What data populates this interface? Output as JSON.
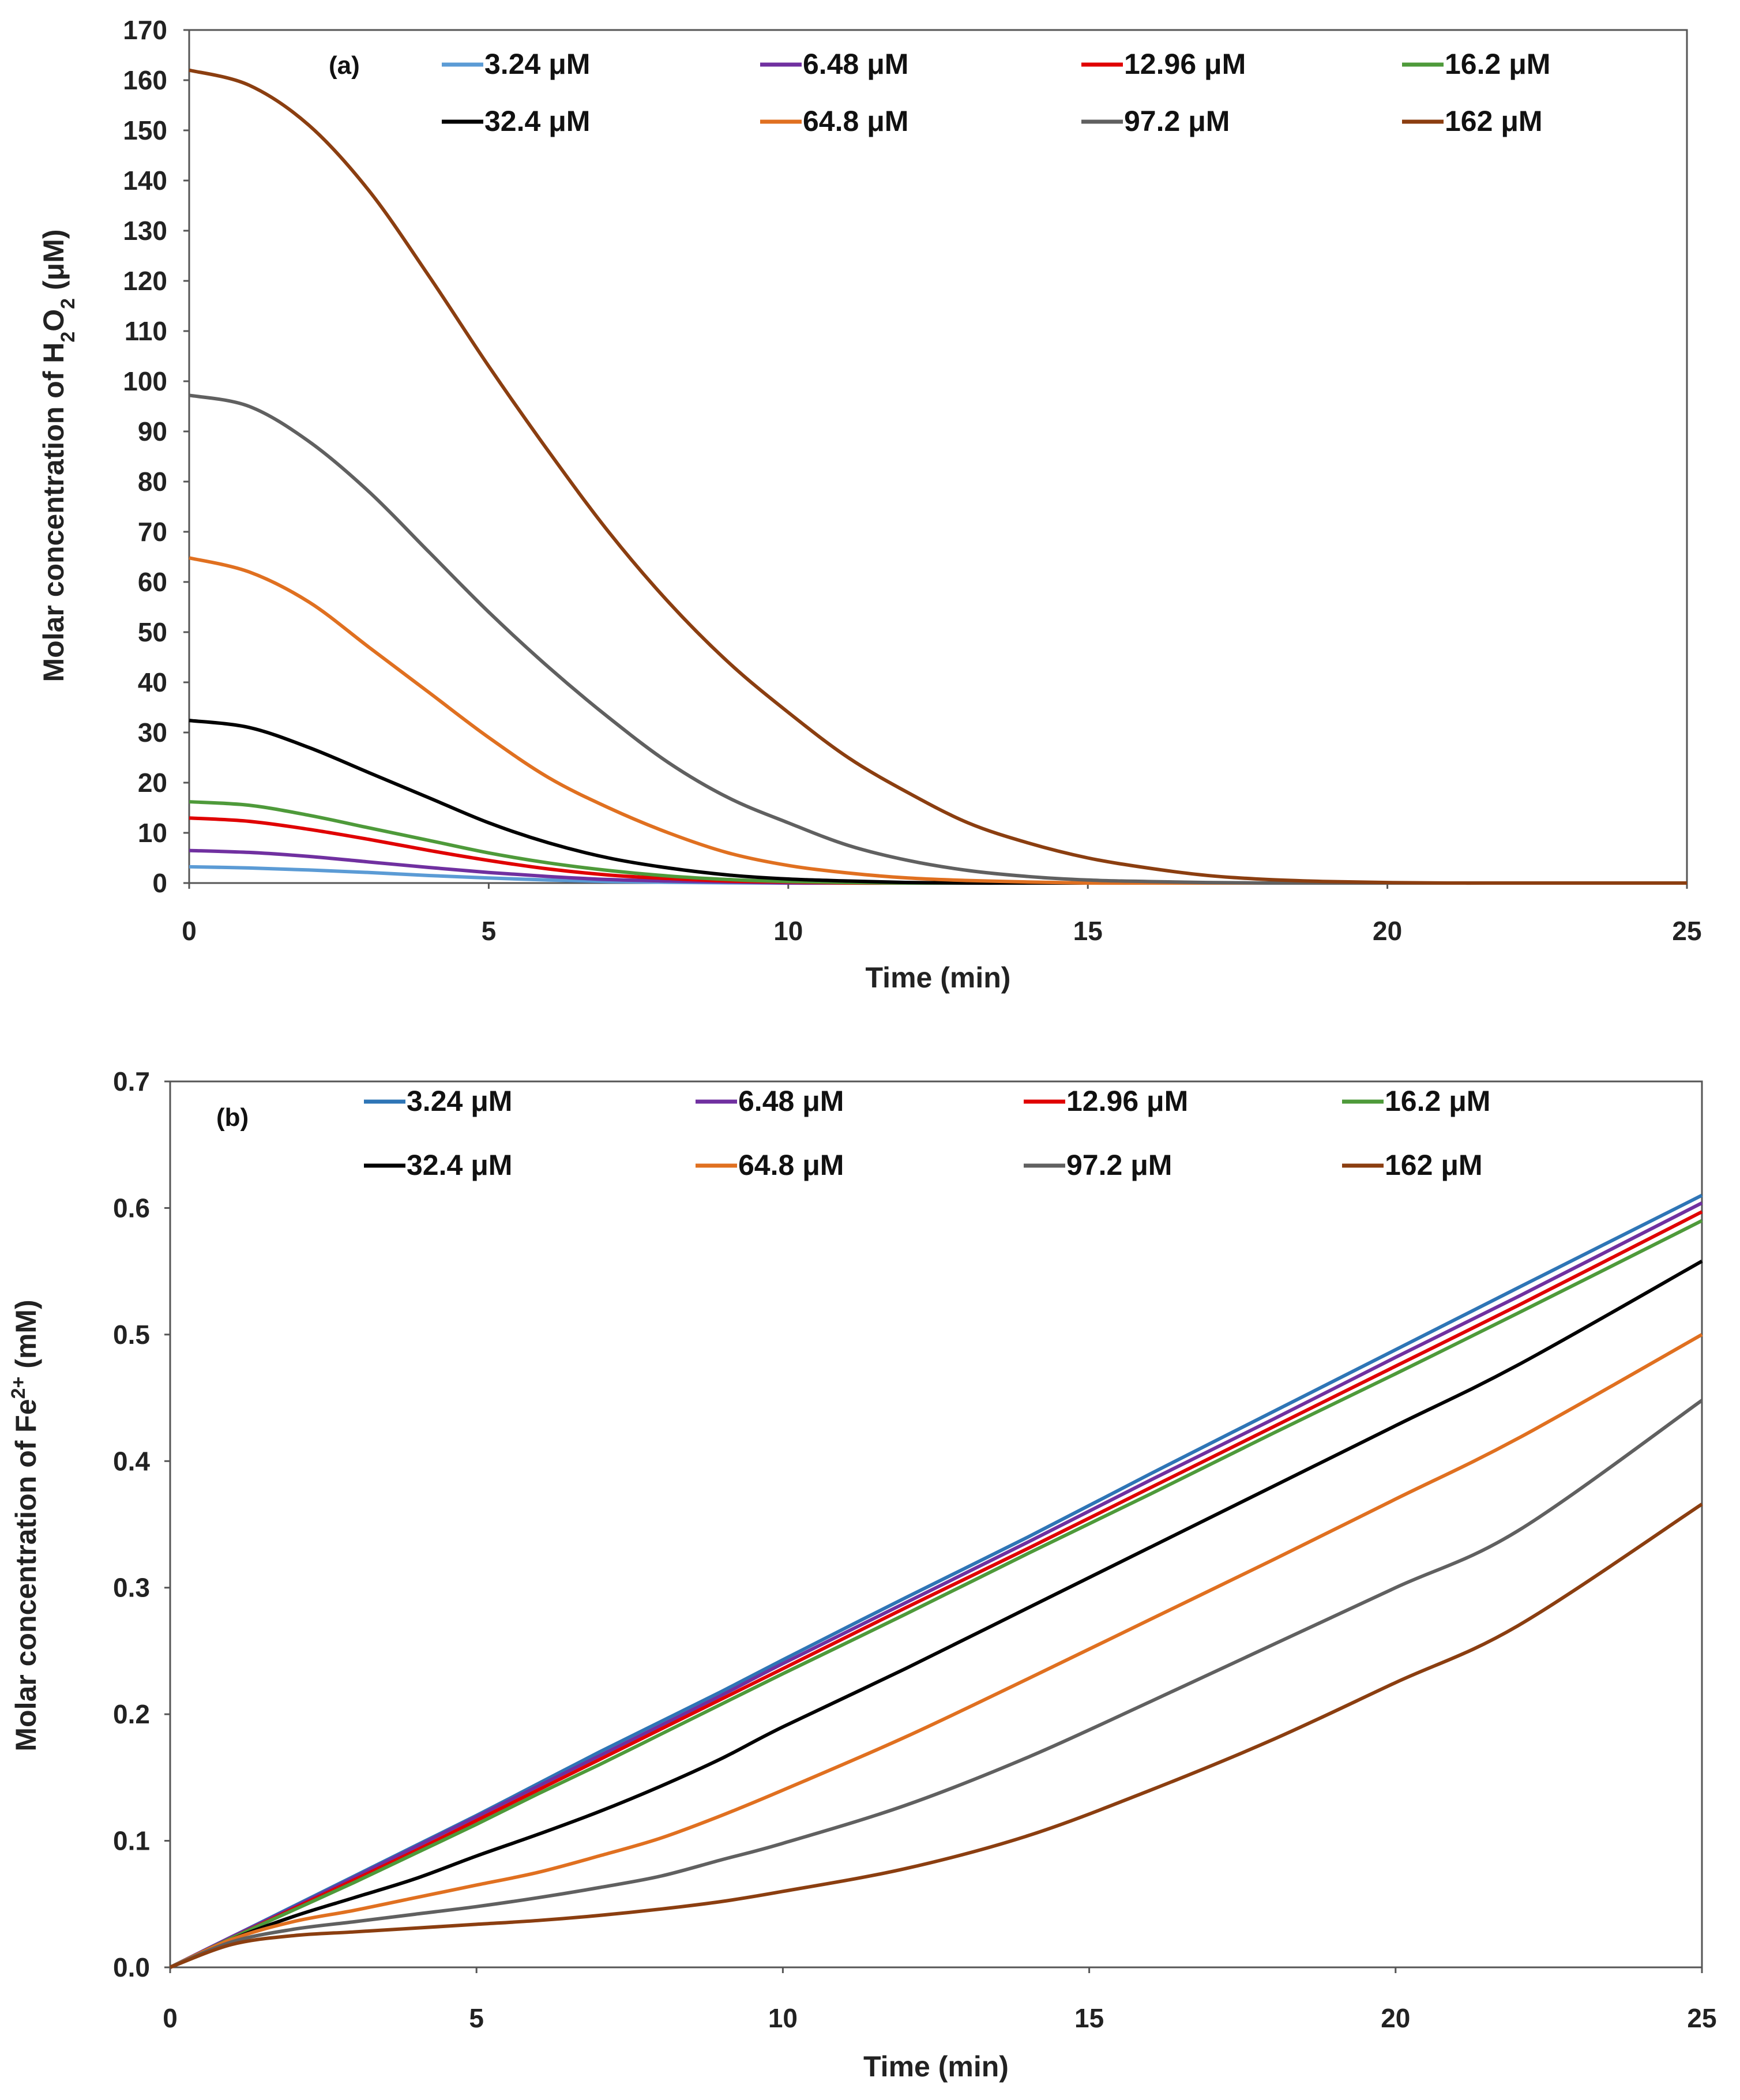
{
  "chart_data": [
    {
      "type": "line",
      "panel_label": "(a)",
      "xlabel": "Time (min)",
      "ylabel": {
        "pre": "Molar concentration of H",
        "sub1": "2",
        "mid": "O",
        "sub2": "2",
        "post": " (μM)"
      },
      "xlim": [
        0,
        25
      ],
      "ylim": [
        0,
        170
      ],
      "xticks": [
        0,
        5,
        10,
        15,
        20,
        25
      ],
      "yticks": [
        0,
        10,
        20,
        30,
        40,
        50,
        60,
        70,
        80,
        90,
        100,
        110,
        120,
        130,
        140,
        150,
        160,
        170
      ],
      "ytick_format": 0,
      "grid": false,
      "legend": "top (2 rows x 4)",
      "x": [
        0,
        1,
        2,
        3,
        4,
        5,
        6,
        7,
        8,
        9,
        10,
        11,
        12,
        13,
        14,
        15,
        16,
        17,
        18,
        19,
        20,
        21,
        22,
        23,
        24,
        25
      ],
      "series": [
        {
          "name": "3.24 μM",
          "color": "#5B9BD5",
          "values": [
            3.24,
            3.0,
            2.6,
            2.1,
            1.5,
            1.0,
            0.6,
            0.3,
            0.15,
            0.05,
            0,
            0,
            0,
            0,
            0,
            0,
            0,
            0,
            0,
            0,
            0,
            0,
            0,
            0,
            0,
            0
          ]
        },
        {
          "name": "6.48 μM",
          "color": "#7030A0",
          "values": [
            6.48,
            6.1,
            5.3,
            4.2,
            3.1,
            2.1,
            1.3,
            0.7,
            0.4,
            0.2,
            0,
            0,
            0,
            0,
            0,
            0,
            0,
            0,
            0,
            0,
            0,
            0,
            0,
            0,
            0,
            0
          ]
        },
        {
          "name": "12.96 μM",
          "color": "#E00000",
          "values": [
            12.96,
            12.3,
            10.7,
            8.7,
            6.5,
            4.5,
            2.8,
            1.6,
            0.9,
            0.4,
            0.2,
            0,
            0,
            0,
            0,
            0,
            0,
            0,
            0,
            0,
            0,
            0,
            0,
            0,
            0,
            0
          ]
        },
        {
          "name": "16.2 μM",
          "color": "#4E9A3A",
          "values": [
            16.2,
            15.5,
            13.5,
            11,
            8.5,
            6,
            4,
            2.5,
            1.4,
            0.7,
            0.3,
            0.1,
            0,
            0,
            0,
            0,
            0,
            0,
            0,
            0,
            0,
            0,
            0,
            0,
            0,
            0
          ]
        },
        {
          "name": "32.4 μM",
          "color": "#000000",
          "values": [
            32.4,
            31,
            27,
            22,
            17,
            12,
            8,
            5,
            3,
            1.6,
            0.8,
            0.4,
            0.1,
            0,
            0,
            0,
            0,
            0,
            0,
            0,
            0,
            0,
            0,
            0,
            0,
            0
          ]
        },
        {
          "name": "64.8 μM",
          "color": "#E07020",
          "values": [
            64.8,
            62,
            56,
            47,
            38,
            29,
            21,
            15,
            10,
            6,
            3.5,
            2,
            1,
            0.5,
            0.2,
            0,
            0,
            0,
            0,
            0,
            0,
            0,
            0,
            0,
            0,
            0
          ]
        },
        {
          "name": "97.2 μM",
          "color": "#606060",
          "values": [
            97.2,
            95,
            88,
            78,
            66,
            54,
            43,
            33,
            24,
            17,
            12,
            7.5,
            4.5,
            2.5,
            1.3,
            0.6,
            0.3,
            0.1,
            0,
            0,
            0,
            0,
            0,
            0,
            0,
            0
          ]
        },
        {
          "name": "162 μM",
          "color": "#8B3E10",
          "values": [
            162,
            159,
            151,
            138,
            121,
            103,
            86,
            70,
            56,
            44,
            34,
            25,
            18,
            12,
            8,
            5,
            3,
            1.5,
            0.7,
            0.3,
            0.1,
            0,
            0,
            0,
            0,
            0
          ]
        }
      ]
    },
    {
      "type": "line",
      "panel_label": "(b)",
      "xlabel": "Time (min)",
      "ylabel": {
        "pre": "Molar concentration of Fe",
        "sup": "2+",
        "post": " (mM)"
      },
      "xlim": [
        0,
        25
      ],
      "ylim": [
        0,
        0.7
      ],
      "xticks": [
        0,
        5,
        10,
        15,
        20,
        25
      ],
      "yticks": [
        0,
        0.1,
        0.2,
        0.3,
        0.4,
        0.5,
        0.6,
        0.7
      ],
      "ytick_labels": [
        "0.0",
        "0.1",
        "0.2",
        "0.3",
        "0.4",
        "0.5",
        "0.6",
        "0.7"
      ],
      "grid": false,
      "legend": "top (2 rows x 4)",
      "x": [
        0,
        1,
        2,
        3,
        4,
        5,
        6,
        7,
        8,
        9,
        10,
        12,
        14,
        16,
        18,
        20,
        22,
        25
      ],
      "series": [
        {
          "name": "3.24 μM",
          "color": "#2E75B6",
          "values": [
            0,
            0.024,
            0.048,
            0.072,
            0.096,
            0.12,
            0.145,
            0.17,
            0.194,
            0.218,
            0.243,
            0.292,
            0.34,
            0.39,
            0.439,
            0.488,
            0.537,
            0.61
          ]
        },
        {
          "name": "6.48 μM",
          "color": "#7030A0",
          "values": [
            0,
            0.024,
            0.047,
            0.071,
            0.095,
            0.119,
            0.143,
            0.167,
            0.191,
            0.215,
            0.24,
            0.288,
            0.336,
            0.385,
            0.433,
            0.482,
            0.53,
            0.604
          ]
        },
        {
          "name": "12.96 μM",
          "color": "#E00000",
          "values": [
            0,
            0.023,
            0.046,
            0.069,
            0.092,
            0.116,
            0.14,
            0.164,
            0.188,
            0.212,
            0.236,
            0.284,
            0.331,
            0.379,
            0.427,
            0.475,
            0.523,
            0.597
          ]
        },
        {
          "name": "16.2 μM",
          "color": "#4E9A3A",
          "values": [
            0,
            0.023,
            0.045,
            0.067,
            0.09,
            0.113,
            0.137,
            0.16,
            0.184,
            0.208,
            0.232,
            0.279,
            0.327,
            0.374,
            0.422,
            0.469,
            0.517,
            0.59
          ]
        },
        {
          "name": "32.4 μM",
          "color": "#000000",
          "values": [
            0,
            0.022,
            0.04,
            0.055,
            0.07,
            0.088,
            0.105,
            0.123,
            0.143,
            0.165,
            0.19,
            0.236,
            0.284,
            0.332,
            0.38,
            0.428,
            0.476,
            0.558
          ]
        },
        {
          "name": "64.8 μM",
          "color": "#E07020",
          "values": [
            0,
            0.022,
            0.036,
            0.045,
            0.055,
            0.065,
            0.075,
            0.088,
            0.102,
            0.12,
            0.14,
            0.182,
            0.228,
            0.275,
            0.322,
            0.37,
            0.418,
            0.5
          ]
        },
        {
          "name": "97.2 μM",
          "color": "#606060",
          "values": [
            0,
            0.02,
            0.03,
            0.036,
            0.042,
            0.048,
            0.055,
            0.063,
            0.072,
            0.085,
            0.098,
            0.128,
            0.166,
            0.21,
            0.255,
            0.3,
            0.345,
            0.448
          ]
        },
        {
          "name": "162 μM",
          "color": "#8B3E10",
          "values": [
            0,
            0.018,
            0.025,
            0.028,
            0.031,
            0.034,
            0.037,
            0.041,
            0.046,
            0.052,
            0.06,
            0.078,
            0.104,
            0.14,
            0.18,
            0.225,
            0.27,
            0.366
          ]
        }
      ]
    }
  ]
}
